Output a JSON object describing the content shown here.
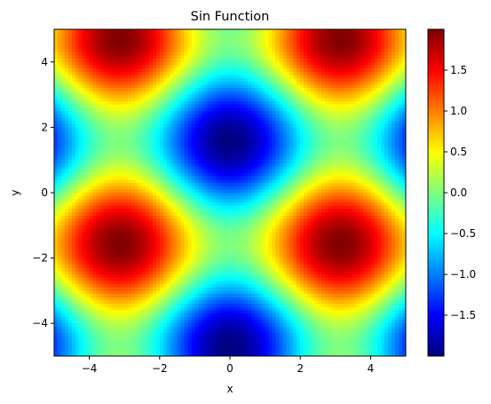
{
  "chart_data": {
    "type": "heatmap",
    "title": "Sin Function",
    "xlabel": "x",
    "ylabel": "y",
    "function": "sin(x) - cos(x) + ... (visual approximation: z = -cos(x) - sin(y))",
    "xlim": [
      -5,
      5
    ],
    "ylim": [
      -5,
      5
    ],
    "x_ticks": [
      -4,
      -2,
      0,
      2,
      4
    ],
    "x_tick_labels": [
      "−4",
      "−2",
      "0",
      "2",
      "4"
    ],
    "y_ticks": [
      -4,
      -2,
      0,
      2,
      4
    ],
    "y_tick_labels": [
      "−4",
      "−2",
      "0",
      "2",
      "4"
    ],
    "colormap": "jet",
    "zlim": [
      -2,
      2
    ],
    "colorbar_ticks": [
      1.5,
      1.0,
      0.5,
      0.0,
      -0.5,
      -1.0,
      -1.5
    ],
    "colorbar_tick_labels": [
      "1.5",
      "1.0",
      "0.5",
      "0.0",
      "−0.5",
      "−1.0",
      "−1.5"
    ],
    "grid_resolution": 100,
    "grid": false
  }
}
